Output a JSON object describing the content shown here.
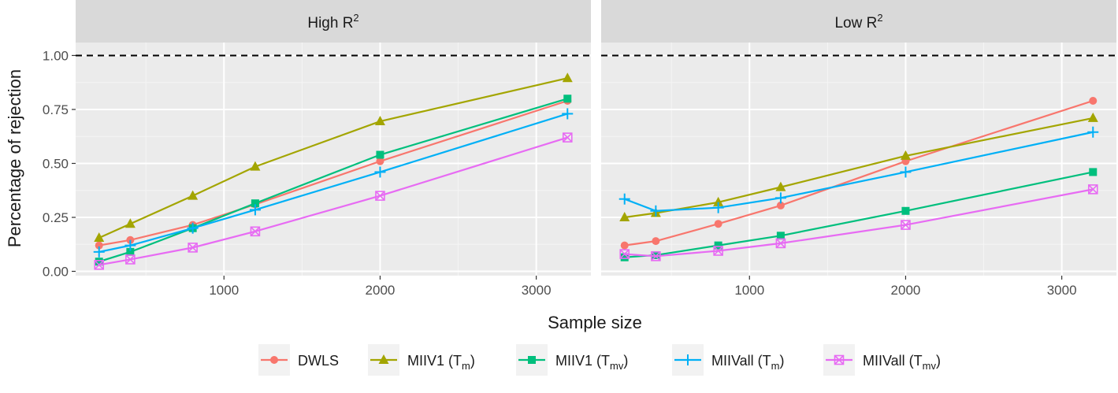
{
  "chart_data": {
    "type": "line",
    "xlabel": "Sample size",
    "ylabel": "Percentage of rejection",
    "xlim": [
      50,
      3350
    ],
    "ylim": [
      -0.02,
      1.06
    ],
    "xticks": [
      1000,
      2000,
      3000
    ],
    "xtick_labels": [
      "1000",
      "2000",
      "3000"
    ],
    "yticks": [
      0,
      0.25,
      0.5,
      0.75,
      1.0
    ],
    "ytick_labels": [
      "0.00",
      "0.25",
      "0.50",
      "0.75",
      "1.00"
    ],
    "reference_line": {
      "y": 1.0,
      "style": "dashed"
    },
    "grid": true,
    "legend_position": "bottom",
    "x": [
      200,
      400,
      800,
      1200,
      2000,
      3200
    ],
    "series": [
      {
        "name": "DWLS",
        "name_main": "DWLS",
        "name_sub": "",
        "color": "#F8766D",
        "marker": "circle"
      },
      {
        "name": "MIIV1 (Tm)",
        "name_main": "MIIV1 (T",
        "name_sub": "m",
        "color": "#A3A500",
        "marker": "triangle"
      },
      {
        "name": "MIIV1 (Tmv)",
        "name_main": "MIIV1 (T",
        "name_sub": "mv",
        "color": "#00BF7D",
        "marker": "square"
      },
      {
        "name": "MIIVall (Tm)",
        "name_main": "MIIVall (T",
        "name_sub": "m",
        "color": "#00B0F6",
        "marker": "plus"
      },
      {
        "name": "MIIVall (Tmv)",
        "name_main": "MIIVall (T",
        "name_sub": "mv",
        "color": "#E76BF3",
        "marker": "boxx"
      }
    ],
    "panels": [
      {
        "title_main": "High R",
        "title_sup": "2",
        "values": [
          [
            0.12,
            0.145,
            0.215,
            0.31,
            0.51,
            0.79
          ],
          [
            0.155,
            0.22,
            0.35,
            0.485,
            0.695,
            0.895
          ],
          [
            0.045,
            0.09,
            0.2,
            0.315,
            0.54,
            0.8
          ],
          [
            0.09,
            0.12,
            0.2,
            0.285,
            0.46,
            0.73
          ],
          [
            0.03,
            0.055,
            0.11,
            0.185,
            0.35,
            0.62
          ]
        ]
      },
      {
        "title_main": "Low R",
        "title_sup": "2",
        "values": [
          [
            0.12,
            0.14,
            0.22,
            0.305,
            0.51,
            0.79
          ],
          [
            0.25,
            0.27,
            0.32,
            0.39,
            0.535,
            0.71
          ],
          [
            0.065,
            0.075,
            0.12,
            0.165,
            0.28,
            0.46
          ],
          [
            0.335,
            0.28,
            0.295,
            0.34,
            0.46,
            0.645
          ],
          [
            0.08,
            0.07,
            0.095,
            0.13,
            0.215,
            0.38
          ]
        ]
      }
    ]
  }
}
